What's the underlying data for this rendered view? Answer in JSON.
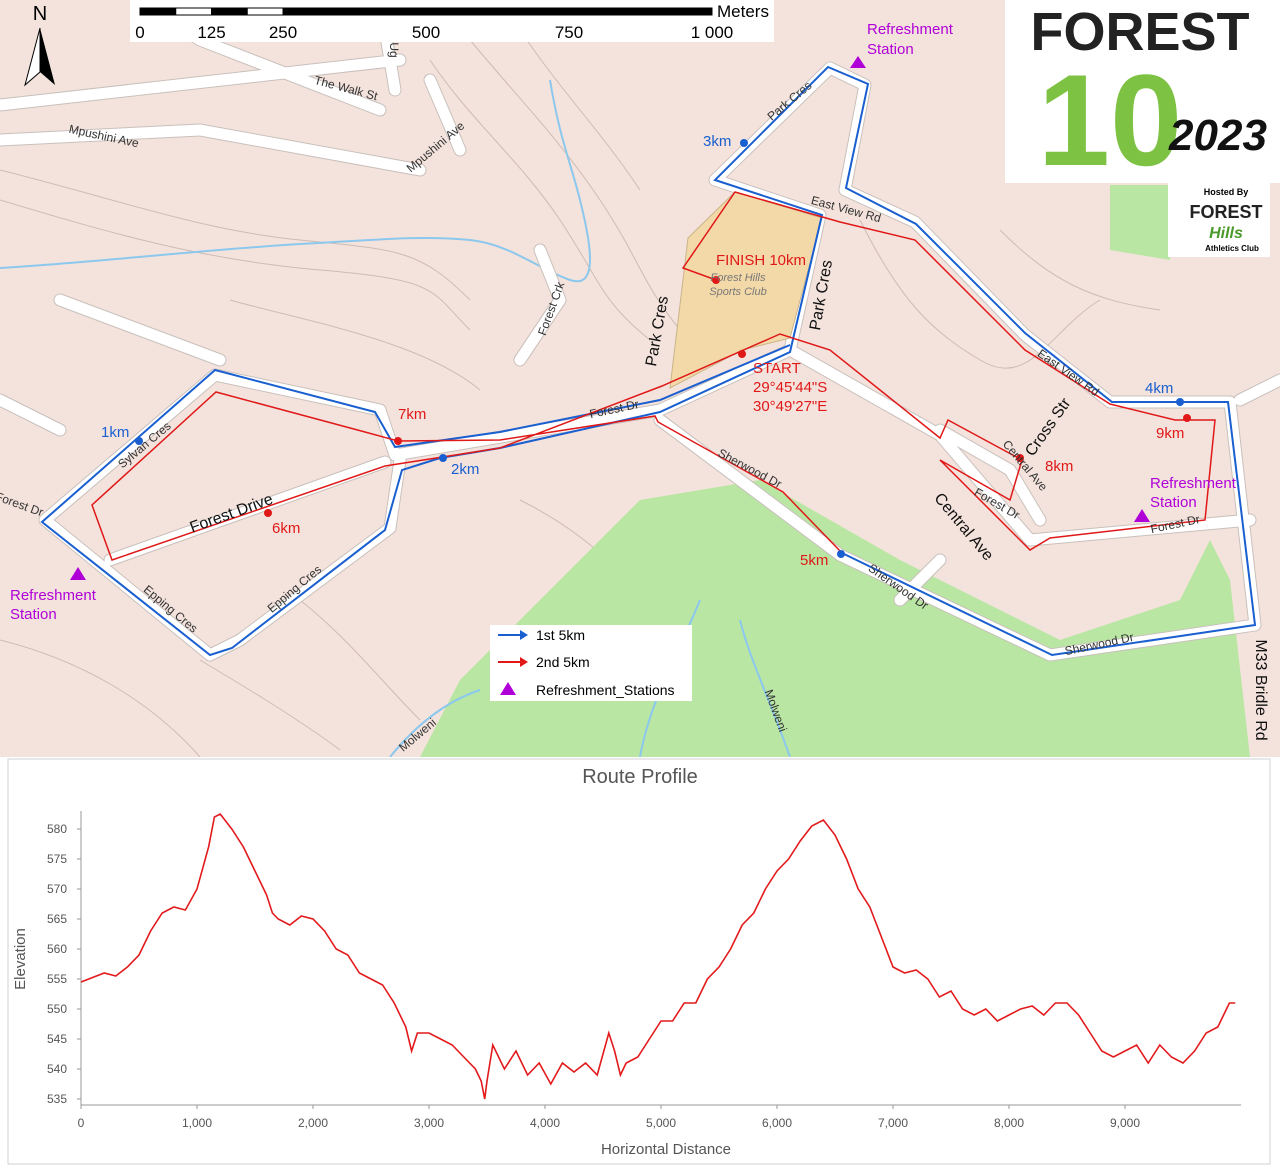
{
  "map": {
    "north_label": "N",
    "scale_bar": {
      "unit": "Meters",
      "ticks": [
        0,
        125,
        250,
        500,
        750,
        {
          "value": 1000,
          "label": "1 000"
        }
      ]
    },
    "logo": {
      "title": "FOREST",
      "number": "10",
      "year": "2023",
      "hosted_by": "Hosted By",
      "club_name": [
        "FOREST",
        "Hills"
      ],
      "club_sub": "Athletics Club"
    },
    "streets": [
      "The Walk St",
      "Mpushini Ave",
      "Mpushini Ave",
      "Ug",
      "Forest Crk",
      "Park Cres",
      "East View Rd",
      "Park Cres",
      "Park Cres",
      "Forest Dr",
      "Sylvan Cres",
      "Forest Drive",
      "Forest Dr",
      "Epping Cres",
      "Epping Cres",
      "Sherwood Dr",
      "Sherwood Dr",
      "Sherwood Dr",
      "East View Rd",
      "Cross Str",
      "Central Ave",
      "Forest Dr",
      "Central Ave",
      "Forest Dr",
      "M33  Bridle Rd",
      "Molweni",
      "Molweni"
    ],
    "km_markers": [
      "1km",
      "2km",
      "3km",
      "4km",
      "5km",
      "6km",
      "7km",
      "8km",
      "9km"
    ],
    "start": {
      "label": "START",
      "lat": "29°45'44\"S",
      "lon": "30°49'27\"E"
    },
    "finish": "FINISH 10km",
    "venue": [
      "Forest Hills",
      "Sports Club"
    ],
    "refreshment_stations": [
      [
        "Refreshment",
        "Station"
      ],
      [
        "Refreshment",
        "Station"
      ],
      [
        "Refreshment",
        "Station"
      ]
    ],
    "legend": [
      "1st 5km",
      "2nd 5km",
      "Refreshment_Stations"
    ]
  },
  "chart_data": {
    "type": "line",
    "title": "Route Profile",
    "x_label": "Horizontal Distance",
    "y_label": "Elevation",
    "color": "#e31a1c",
    "x": [
      0,
      200,
      300,
      400,
      500,
      600,
      700,
      800,
      900,
      1000,
      1100,
      1150,
      1200,
      1300,
      1400,
      1500,
      1600,
      1650,
      1700,
      1800,
      1900,
      2000,
      2100,
      2200,
      2300,
      2400,
      2500,
      2600,
      2700,
      2800,
      2850,
      2900,
      3000,
      3100,
      3200,
      3300,
      3400,
      3450,
      3480,
      3500,
      3550,
      3650,
      3750,
      3850,
      3950,
      4050,
      4150,
      4250,
      4350,
      4450,
      4550,
      4600,
      4650,
      4700,
      4800,
      4900,
      5000,
      5100,
      5200,
      5300,
      5400,
      5500,
      5600,
      5700,
      5800,
      5900,
      6000,
      6100,
      6200,
      6300,
      6400,
      6500,
      6600,
      6700,
      6800,
      6900,
      7000,
      7100,
      7200,
      7300,
      7400,
      7500,
      7600,
      7700,
      7800,
      7900,
      8000,
      8100,
      8200,
      8300,
      8400,
      8500,
      8600,
      8700,
      8800,
      8900,
      9000,
      9100,
      9200,
      9300,
      9400,
      9500,
      9600,
      9700,
      9800,
      9900,
      9950
    ],
    "values": [
      554.5,
      556,
      555.5,
      557,
      559,
      563,
      566,
      567,
      566.5,
      570,
      577,
      582,
      582.5,
      580,
      577,
      573,
      569,
      566,
      565,
      564,
      565.5,
      565,
      563,
      560,
      559,
      556,
      555,
      554,
      551,
      547,
      543,
      546,
      546,
      545,
      544,
      542,
      540,
      538,
      535,
      538,
      544,
      540,
      543,
      539,
      541,
      537.5,
      541,
      539.5,
      541,
      539,
      546,
      543,
      539,
      541,
      542,
      545,
      548,
      548,
      551,
      551,
      555,
      557,
      560,
      564,
      566,
      570,
      573,
      575,
      578,
      580.5,
      581.5,
      579,
      575,
      570,
      567,
      562,
      557,
      556,
      556.5,
      555,
      552,
      553,
      550,
      549,
      550,
      548,
      549,
      550,
      550.5,
      549,
      551,
      551,
      549,
      546,
      543,
      542,
      543,
      544,
      541,
      544,
      542,
      541,
      543,
      546,
      547,
      551,
      551
    ],
    "xlim": [
      0,
      10000
    ],
    "ylim": [
      534,
      583
    ],
    "xticks": [
      0,
      {
        "value": 1000,
        "label": "1,000"
      },
      {
        "value": 2000,
        "label": "2,000"
      },
      {
        "value": 3000,
        "label": "3,000"
      },
      {
        "value": 4000,
        "label": "4,000"
      },
      {
        "value": 5000,
        "label": "5,000"
      },
      {
        "value": 6000,
        "label": "6,000"
      },
      {
        "value": 7000,
        "label": "7,000"
      },
      {
        "value": 8000,
        "label": "8,000"
      },
      {
        "value": 9000,
        "label": "9,000"
      }
    ],
    "yticks": [
      535,
      540,
      545,
      550,
      555,
      560,
      565,
      570,
      575,
      580
    ]
  }
}
